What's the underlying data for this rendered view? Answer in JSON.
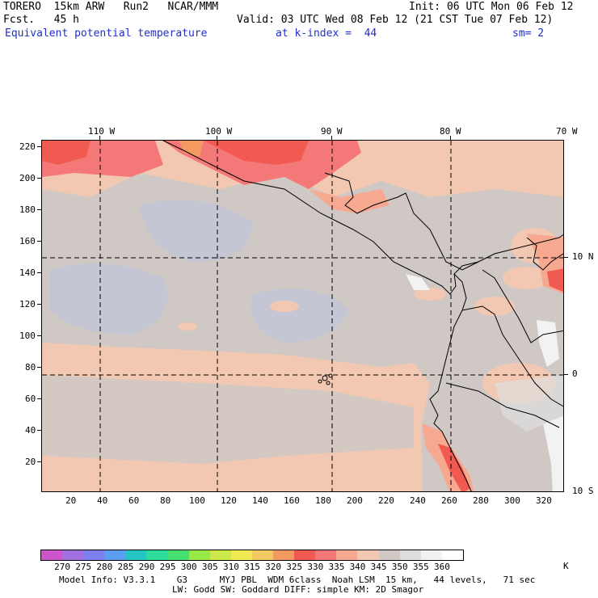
{
  "header": {
    "model": "TORERO  15km ARW   Run2   NCAR/MMM",
    "init": "Init: 06 UTC Mon 06 Feb 12",
    "fcst": "Fcst.   45 h",
    "valid": "Valid: 03 UTC Wed 08 Feb 12 (21 CST Tue 07 Feb 12)",
    "field": "Equivalent potential temperature",
    "level": "at k-index =  44",
    "smooth": "sm= 2"
  },
  "axes": {
    "top_lon": [
      "110 W",
      "100 W",
      "90 W",
      "80 W",
      "70 W"
    ],
    "right_lat": [
      "10 N",
      "0",
      "10 S"
    ],
    "left_y": [
      "220",
      "200",
      "180",
      "160",
      "140",
      "120",
      "100",
      "80",
      "60",
      "40",
      "20"
    ],
    "bottom_x": [
      "20",
      "40",
      "60",
      "80",
      "100",
      "120",
      "140",
      "160",
      "180",
      "200",
      "220",
      "240",
      "260",
      "280",
      "300",
      "320"
    ]
  },
  "colorbar": {
    "labels": [
      "270",
      "275",
      "280",
      "285",
      "290",
      "295",
      "300",
      "305",
      "310",
      "315",
      "320",
      "325",
      "330",
      "335",
      "340",
      "345",
      "350",
      "355",
      "360"
    ],
    "unit": "K",
    "colors": [
      "#cc55cc",
      "#a070e0",
      "#7f7ff2",
      "#5a9ef0",
      "#27c4c4",
      "#2edc9c",
      "#45e070",
      "#98e848",
      "#cce84a",
      "#f2ea52",
      "#f2c860",
      "#f29a60",
      "#f05a50",
      "#f57878",
      "#f6a890",
      "#f2c8b2",
      "#cfc8c4",
      "#dedede",
      "#f2f2f2",
      "#ffffff"
    ]
  },
  "footer": {
    "line1": "Model Info: V3.3.1    G3      MYJ PBL  WDM 6class  Noah LSM  15 km,   44 levels,   71 sec",
    "line2": "LW: Godd SW: Goddard DIFF: simple KM: 2D Smagor"
  }
}
